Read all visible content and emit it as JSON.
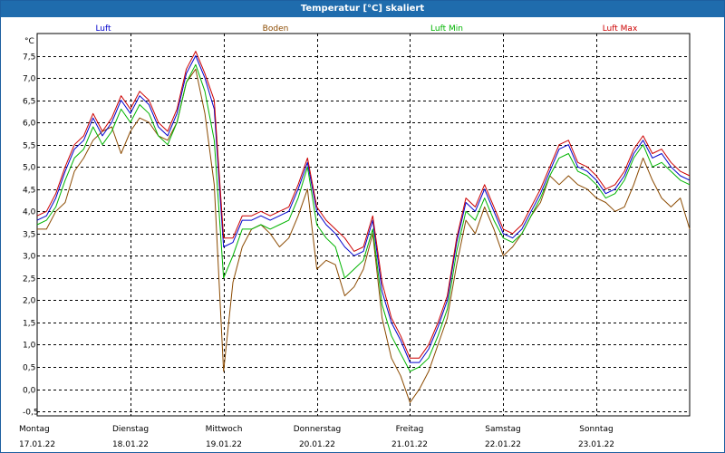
{
  "window": {
    "title": "Temperatur [°C] skaliert"
  },
  "chart_data": {
    "type": "line",
    "title": "Temperatur [°C] skaliert",
    "ylabel": "°C",
    "xlabel": "",
    "ylim": [
      -0.6,
      8.0
    ],
    "xlim": [
      0,
      7
    ],
    "grid": true,
    "y_ticks": [
      "7,5",
      "7,0",
      "6,5",
      "6,0",
      "5,5",
      "5,0",
      "4,5",
      "4,0",
      "3,5",
      "3,0",
      "2,5",
      "2,0",
      "1,5",
      "1,0",
      "0,5",
      "0,0",
      "-0,5"
    ],
    "y_tick_values": [
      7.5,
      7.0,
      6.5,
      6.0,
      5.5,
      5.0,
      4.5,
      4.0,
      3.5,
      3.0,
      2.5,
      2.0,
      1.5,
      1.0,
      0.5,
      0.0,
      -0.5
    ],
    "x_ticks": [
      {
        "day": "Montag",
        "date": "17.01.22"
      },
      {
        "day": "Dienstag",
        "date": "18.01.22"
      },
      {
        "day": "Mittwoch",
        "date": "19.01.22"
      },
      {
        "day": "Donnerstag",
        "date": "20.01.22"
      },
      {
        "day": "Freitag",
        "date": "21.01.22"
      },
      {
        "day": "Samstag",
        "date": "22.01.22"
      },
      {
        "day": "Sonntag",
        "date": "23.01.22"
      }
    ],
    "legend": [
      "Luft",
      "Boden",
      "Luft Min",
      "Luft Max"
    ],
    "series": [
      {
        "name": "Luft",
        "color": "#0000cc",
        "x": [
          0,
          0.1,
          0.2,
          0.3,
          0.4,
          0.5,
          0.6,
          0.7,
          0.8,
          0.9,
          1.0,
          1.1,
          1.2,
          1.3,
          1.4,
          1.5,
          1.6,
          1.7,
          1.8,
          1.9,
          2.0,
          2.1,
          2.2,
          2.3,
          2.4,
          2.5,
          2.6,
          2.7,
          2.8,
          2.9,
          3.0,
          3.1,
          3.2,
          3.3,
          3.4,
          3.5,
          3.6,
          3.7,
          3.8,
          3.9,
          4.0,
          4.1,
          4.2,
          4.3,
          4.4,
          4.5,
          4.6,
          4.7,
          4.8,
          4.9,
          5.0,
          5.1,
          5.2,
          5.3,
          5.4,
          5.5,
          5.6,
          5.7,
          5.8,
          5.9,
          6.0,
          6.1,
          6.2,
          6.3,
          6.4,
          6.5,
          6.6,
          6.7,
          6.8,
          6.9,
          7.0
        ],
        "values": [
          3.8,
          3.9,
          4.3,
          4.9,
          5.4,
          5.6,
          6.1,
          5.7,
          6.0,
          6.5,
          6.2,
          6.6,
          6.4,
          5.9,
          5.7,
          6.2,
          7.1,
          7.5,
          7.0,
          6.3,
          3.2,
          3.3,
          3.8,
          3.8,
          3.9,
          3.8,
          3.9,
          4.0,
          4.5,
          5.1,
          4.0,
          3.7,
          3.5,
          3.2,
          3.0,
          3.1,
          3.8,
          2.2,
          1.5,
          1.1,
          0.6,
          0.6,
          0.9,
          1.4,
          2.0,
          3.3,
          4.2,
          4.0,
          4.5,
          4.0,
          3.5,
          3.4,
          3.6,
          4.0,
          4.4,
          4.9,
          5.4,
          5.5,
          5.0,
          4.9,
          4.7,
          4.4,
          4.5,
          4.8,
          5.3,
          5.6,
          5.2,
          5.3,
          5.0,
          4.8,
          4.7
        ]
      },
      {
        "name": "Boden",
        "color": "#8b4a00",
        "x": [
          0,
          0.1,
          0.2,
          0.3,
          0.4,
          0.5,
          0.6,
          0.7,
          0.8,
          0.9,
          1.0,
          1.1,
          1.2,
          1.3,
          1.4,
          1.5,
          1.6,
          1.7,
          1.8,
          1.9,
          2.0,
          2.1,
          2.2,
          2.3,
          2.4,
          2.5,
          2.6,
          2.7,
          2.8,
          2.9,
          3.0,
          3.1,
          3.2,
          3.3,
          3.4,
          3.5,
          3.6,
          3.7,
          3.8,
          3.9,
          4.0,
          4.1,
          4.2,
          4.3,
          4.4,
          4.5,
          4.6,
          4.7,
          4.8,
          4.9,
          5.0,
          5.1,
          5.2,
          5.3,
          5.4,
          5.5,
          5.6,
          5.7,
          5.8,
          5.9,
          6.0,
          6.1,
          6.2,
          6.3,
          6.4,
          6.5,
          6.6,
          6.7,
          6.8,
          6.9,
          7.0
        ],
        "values": [
          3.6,
          3.6,
          4.0,
          4.2,
          4.9,
          5.2,
          5.6,
          5.8,
          5.9,
          5.3,
          5.8,
          6.1,
          6.0,
          5.7,
          5.6,
          6.0,
          6.9,
          7.2,
          6.2,
          4.6,
          0.4,
          2.4,
          3.2,
          3.6,
          3.7,
          3.5,
          3.2,
          3.4,
          3.9,
          4.5,
          2.7,
          2.9,
          2.8,
          2.1,
          2.3,
          2.7,
          3.5,
          1.6,
          0.7,
          0.3,
          -0.3,
          0.0,
          0.4,
          1.0,
          1.6,
          2.8,
          3.8,
          3.5,
          4.1,
          3.6,
          3.0,
          3.2,
          3.5,
          3.9,
          4.2,
          4.8,
          4.6,
          4.8,
          4.6,
          4.5,
          4.3,
          4.2,
          4.0,
          4.1,
          4.6,
          5.2,
          4.7,
          4.3,
          4.1,
          4.3,
          3.6
        ]
      },
      {
        "name": "Luft Min",
        "color": "#00b400",
        "x": [
          0,
          0.1,
          0.2,
          0.3,
          0.4,
          0.5,
          0.6,
          0.7,
          0.8,
          0.9,
          1.0,
          1.1,
          1.2,
          1.3,
          1.4,
          1.5,
          1.6,
          1.7,
          1.8,
          1.9,
          2.0,
          2.1,
          2.2,
          2.3,
          2.4,
          2.5,
          2.6,
          2.7,
          2.8,
          2.9,
          3.0,
          3.1,
          3.2,
          3.3,
          3.4,
          3.5,
          3.6,
          3.7,
          3.8,
          3.9,
          4.0,
          4.1,
          4.2,
          4.3,
          4.4,
          4.5,
          4.6,
          4.7,
          4.8,
          4.9,
          5.0,
          5.1,
          5.2,
          5.3,
          5.4,
          5.5,
          5.6,
          5.7,
          5.8,
          5.9,
          6.0,
          6.1,
          6.2,
          6.3,
          6.4,
          6.5,
          6.6,
          6.7,
          6.8,
          6.9,
          7.0
        ],
        "values": [
          3.7,
          3.8,
          4.1,
          4.7,
          5.2,
          5.4,
          5.9,
          5.5,
          5.8,
          6.3,
          6.0,
          6.4,
          6.2,
          5.7,
          5.5,
          6.0,
          6.9,
          7.3,
          6.7,
          5.6,
          2.5,
          3.0,
          3.6,
          3.6,
          3.7,
          3.6,
          3.7,
          3.8,
          4.3,
          5.0,
          3.7,
          3.4,
          3.2,
          2.5,
          2.7,
          2.9,
          3.6,
          1.9,
          1.2,
          0.8,
          0.4,
          0.5,
          0.7,
          1.2,
          1.8,
          3.1,
          4.0,
          3.8,
          4.3,
          3.8,
          3.4,
          3.3,
          3.5,
          3.9,
          4.3,
          4.8,
          5.2,
          5.3,
          4.9,
          4.8,
          4.6,
          4.3,
          4.4,
          4.7,
          5.2,
          5.5,
          5.0,
          5.1,
          4.9,
          4.7,
          4.6
        ]
      },
      {
        "name": "Luft Max",
        "color": "#cc0000",
        "x": [
          0,
          0.1,
          0.2,
          0.3,
          0.4,
          0.5,
          0.6,
          0.7,
          0.8,
          0.9,
          1.0,
          1.1,
          1.2,
          1.3,
          1.4,
          1.5,
          1.6,
          1.7,
          1.8,
          1.9,
          2.0,
          2.1,
          2.2,
          2.3,
          2.4,
          2.5,
          2.6,
          2.7,
          2.8,
          2.9,
          3.0,
          3.1,
          3.2,
          3.3,
          3.4,
          3.5,
          3.6,
          3.7,
          3.8,
          3.9,
          4.0,
          4.1,
          4.2,
          4.3,
          4.4,
          4.5,
          4.6,
          4.7,
          4.8,
          4.9,
          5.0,
          5.1,
          5.2,
          5.3,
          5.4,
          5.5,
          5.6,
          5.7,
          5.8,
          5.9,
          6.0,
          6.1,
          6.2,
          6.3,
          6.4,
          6.5,
          6.6,
          6.7,
          6.8,
          6.9,
          7.0
        ],
        "values": [
          3.9,
          4.0,
          4.4,
          5.0,
          5.5,
          5.7,
          6.2,
          5.8,
          6.1,
          6.6,
          6.3,
          6.7,
          6.5,
          6.0,
          5.8,
          6.3,
          7.2,
          7.6,
          7.1,
          6.5,
          3.4,
          3.4,
          3.9,
          3.9,
          4.0,
          3.9,
          4.0,
          4.1,
          4.6,
          5.2,
          4.1,
          3.8,
          3.6,
          3.4,
          3.1,
          3.2,
          3.9,
          2.4,
          1.6,
          1.2,
          0.7,
          0.7,
          1.0,
          1.5,
          2.1,
          3.4,
          4.3,
          4.1,
          4.6,
          4.1,
          3.6,
          3.5,
          3.7,
          4.1,
          4.5,
          5.0,
          5.5,
          5.6,
          5.1,
          5.0,
          4.8,
          4.5,
          4.6,
          4.9,
          5.4,
          5.7,
          5.3,
          5.4,
          5.1,
          4.9,
          4.8
        ]
      }
    ]
  }
}
